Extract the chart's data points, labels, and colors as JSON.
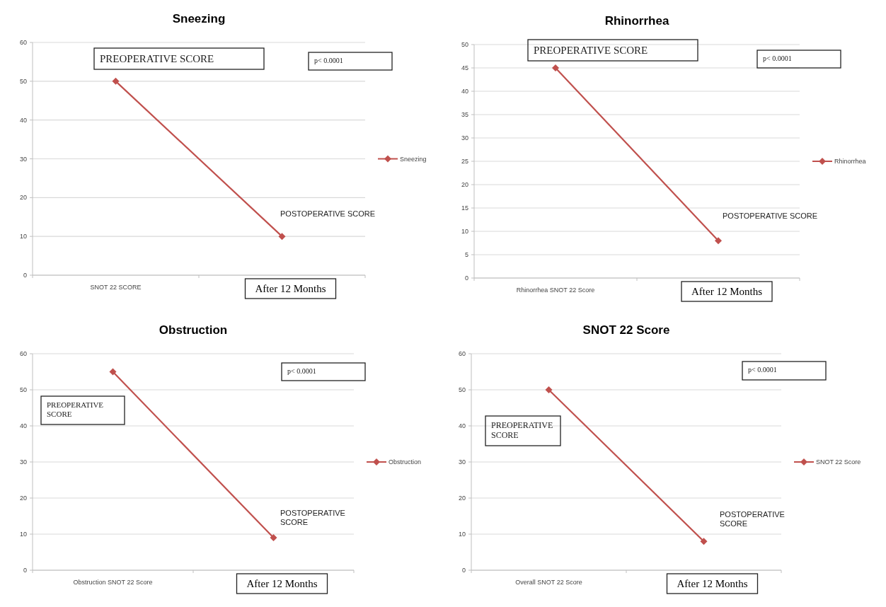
{
  "chart_data": [
    {
      "type": "line",
      "title": "Sneezing",
      "categories": [
        "SNOT 22 SCORE",
        "After 12 Months"
      ],
      "series": [
        {
          "name": "Sneezing",
          "color": "#c0504d",
          "values": [
            50,
            10
          ]
        }
      ],
      "ylim": [
        0,
        60
      ],
      "yticks": [
        0,
        10,
        20,
        30,
        40,
        50,
        60
      ],
      "grid": "y",
      "legend": "right",
      "marker": "diamond",
      "annotations": [
        "PREOPERATIVE SCORE",
        "p< 0.0001",
        "POSTOPERATIVE SCORE"
      ]
    },
    {
      "type": "line",
      "title": "Rhinorrhea",
      "categories": [
        "Rhinorrhea SNOT 22 Score",
        "After 12 Months"
      ],
      "series": [
        {
          "name": "Rhinorrhea",
          "color": "#c0504d",
          "values": [
            45,
            8
          ]
        }
      ],
      "ylim": [
        0,
        50
      ],
      "yticks": [
        0,
        5,
        10,
        15,
        20,
        25,
        30,
        35,
        40,
        45,
        50
      ],
      "grid": "y",
      "legend": "right",
      "marker": "diamond",
      "annotations": [
        "PREOPERATIVE SCORE",
        "p< 0.0001",
        "POSTOPERATIVE SCORE"
      ]
    },
    {
      "type": "line",
      "title": "Obstruction",
      "categories": [
        "Obstruction SNOT 22 Score",
        "After 12 Months"
      ],
      "series": [
        {
          "name": "Obstruction",
          "color": "#c0504d",
          "values": [
            55,
            9
          ]
        }
      ],
      "ylim": [
        0,
        60
      ],
      "yticks": [
        0,
        10,
        20,
        30,
        40,
        50,
        60
      ],
      "grid": "y",
      "legend": "right",
      "marker": "diamond",
      "annotations": [
        "PREOPERATIVE SCORE",
        "p< 0.0001",
        "POSTOPERATIVE SCORE"
      ]
    },
    {
      "type": "line",
      "title": "SNOT 22 Score",
      "categories": [
        "Overall SNOT 22 Score",
        "After 12 Months"
      ],
      "series": [
        {
          "name": "SNOT 22 Score",
          "color": "#c0504d",
          "values": [
            50,
            8
          ]
        }
      ],
      "ylim": [
        0,
        60
      ],
      "yticks": [
        0,
        10,
        20,
        30,
        40,
        50,
        60
      ],
      "grid": "y",
      "legend": "right",
      "marker": "diamond",
      "annotations": [
        "PREOPERATIVE SCORE",
        "p< 0.0001",
        "POSTOPERATIVE SCORE"
      ]
    }
  ]
}
